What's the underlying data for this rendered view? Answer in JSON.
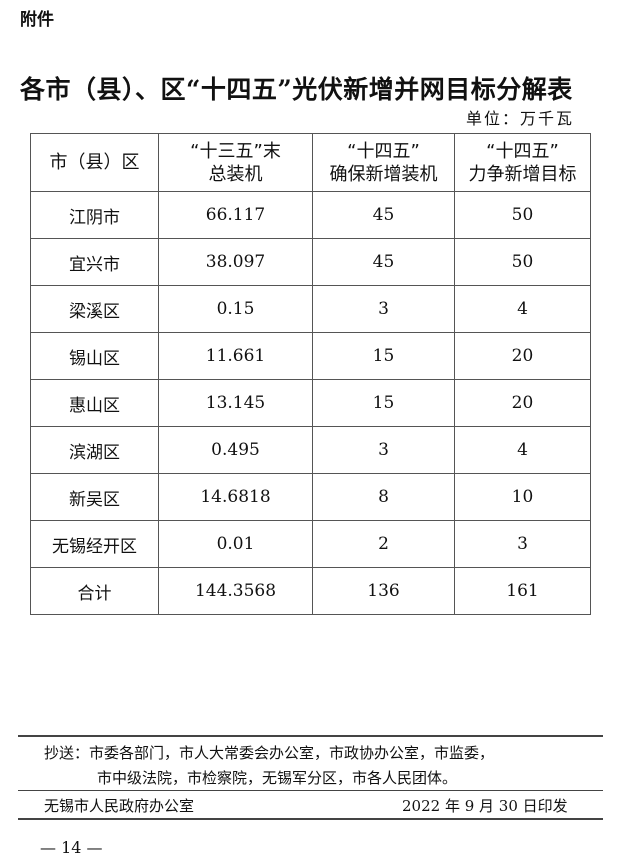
{
  "attachment_label": "附件",
  "title": "各市（县）、区“十四五”光伏新增并网目标分解表",
  "unit": "单位：万千瓦",
  "table": {
    "headers": [
      [
        "市（县）区"
      ],
      [
        "“十三五”末",
        "总装机"
      ],
      [
        "“十四五”",
        "确保新增装机"
      ],
      [
        "“十四五”",
        "力争新增目标"
      ]
    ],
    "rows": [
      [
        "江阴市",
        "66.117",
        "45",
        "50"
      ],
      [
        "宜兴市",
        "38.097",
        "45",
        "50"
      ],
      [
        "梁溪区",
        "0.15",
        "3",
        "4"
      ],
      [
        "锡山区",
        "11.661",
        "15",
        "20"
      ],
      [
        "惠山区",
        "13.145",
        "15",
        "20"
      ],
      [
        "滨湖区",
        "0.495",
        "3",
        "4"
      ],
      [
        "新吴区",
        "14.6818",
        "8",
        "10"
      ],
      [
        "无锡经开区",
        "0.01",
        "2",
        "3"
      ],
      [
        "合计",
        "144.3568",
        "136",
        "161"
      ]
    ]
  },
  "footer": {
    "cc_line1": "抄送：市委各部门，市人大常委会办公室，市政协办公室，市监委，",
    "cc_line2": "市中级法院，市检察院，无锡军分区，市各人民团体。",
    "issuer": "无锡市人民政府办公室",
    "date": "2022 年 9 月 30 日印发"
  },
  "page_number": "— 14 —"
}
